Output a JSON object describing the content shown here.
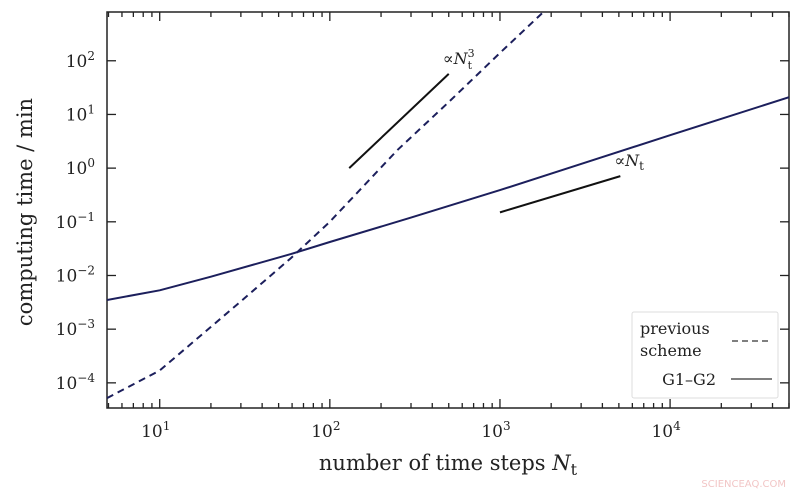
{
  "chart_data": {
    "type": "line",
    "xlabel": "number of time steps",
    "xlabel_symbol": "N",
    "xlabel_sub": "t",
    "ylabel": "computing time / min",
    "xscale": "log",
    "yscale": "log",
    "xlim": [
      4.9,
      50000
    ],
    "ylim": [
      3.4e-05,
      810
    ],
    "x_ticks": [
      10,
      100,
      1000,
      10000
    ],
    "x_tick_labels": [
      {
        "base": "10",
        "exp": "1"
      },
      {
        "base": "10",
        "exp": "2"
      },
      {
        "base": "10",
        "exp": "3"
      },
      {
        "base": "10",
        "exp": "4"
      }
    ],
    "y_ticks": [
      0.0001,
      0.001,
      0.01,
      0.1,
      1,
      10,
      100
    ],
    "y_tick_labels": [
      {
        "base": "10",
        "exp": "−4"
      },
      {
        "base": "10",
        "exp": "−3"
      },
      {
        "base": "10",
        "exp": "−2"
      },
      {
        "base": "10",
        "exp": "−1"
      },
      {
        "base": "10",
        "exp": "0"
      },
      {
        "base": "10",
        "exp": "1"
      },
      {
        "base": "10",
        "exp": "2"
      }
    ],
    "grid": false,
    "legend_position": "bottom-right",
    "line_color": "#1c1f5c",
    "series": [
      {
        "name": "previous scheme",
        "style": "dashed",
        "x": [
          4.9,
          10,
          20,
          30,
          59,
          100,
          251,
          500,
          1000,
          1800
        ],
        "y": [
          5.2e-05,
          0.00017,
          0.0011,
          0.0033,
          0.021,
          0.1,
          2.2,
          17,
          140,
          810
        ]
      },
      {
        "name": "G1–G2",
        "style": "solid",
        "x": [
          4.9,
          10,
          20,
          59,
          100,
          300,
          1000,
          3000,
          10000,
          50000
        ],
        "y": [
          0.0035,
          0.0053,
          0.0095,
          0.025,
          0.042,
          0.12,
          0.39,
          1.2,
          4.1,
          21
        ]
      }
    ],
    "annotations": [
      {
        "text": "∝",
        "symbol": "N",
        "sub": "t",
        "sup": "3",
        "ref_line": {
          "x": [
            130,
            500
          ],
          "y": [
            1.0,
            57
          ]
        }
      },
      {
        "text": "∝",
        "symbol": "N",
        "sub": "t",
        "sup": "",
        "ref_line": {
          "x": [
            1000,
            5100
          ],
          "y": [
            0.15,
            0.71
          ]
        }
      }
    ]
  },
  "watermark": "SCIENCEAQ.COM"
}
